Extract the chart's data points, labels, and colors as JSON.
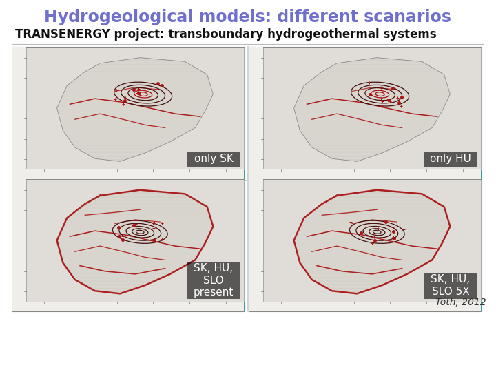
{
  "title": "Hydrogeological models: different scanarios",
  "subtitle": "TRANSENERGY project: transboundary hydrogeothermal systems",
  "title_color": "#7070cc",
  "subtitle_color": "#111111",
  "title_fontsize": 17,
  "subtitle_fontsize": 12,
  "background_color": "#ffffff",
  "teal_bg": "#3a9e9e",
  "map_light": "#e0ddd8",
  "map_ridge": "#c8c4be",
  "label_fontsize": 11,
  "label_text_color": "#ffffff",
  "label_bg": "#000000",
  "contour_red": "#aa1111",
  "contour_dark": "#441111",
  "toth_text": "Tóth, 2012",
  "toth_fontsize": 10,
  "panels": [
    {
      "label": "only SK"
    },
    {
      "label": "only HU"
    },
    {
      "label": "SK, HU,\nSLO\npresent"
    },
    {
      "label": "SK, HU,\nSLO 5X"
    }
  ]
}
